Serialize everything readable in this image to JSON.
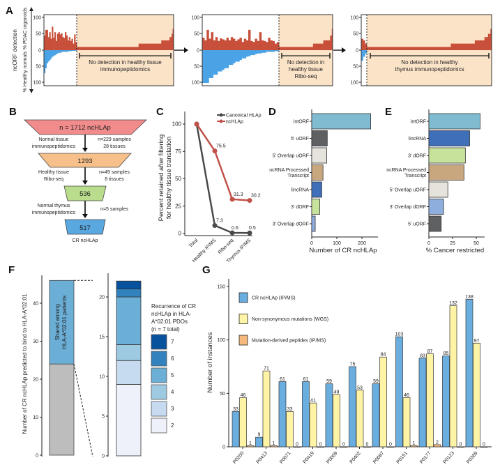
{
  "panel_labels": {
    "a": "A",
    "b": "B",
    "c": "C",
    "d": "D",
    "e": "E",
    "f": "F",
    "g": "G"
  },
  "panel_a": {
    "y_label_outer": "ncORF detection",
    "y_label_top": "% PDAC organoids",
    "y_label_bottom": "% Healthy normals",
    "ticks": [
      "100",
      "50",
      "0",
      "50",
      "100"
    ],
    "colors": {
      "pdac": "#c8503a",
      "healthy": "#4aa3e6",
      "undetected_bg": "#fbe3c8"
    },
    "plots": [
      {
        "annotation": [
          "No detection in healthy tissue",
          "immunopeptidomics"
        ],
        "red_detected": [
          45,
          62,
          62,
          40,
          55,
          35,
          72,
          38,
          55,
          28,
          50,
          55,
          48,
          52,
          40,
          38,
          55,
          45,
          30,
          40,
          28,
          35,
          20,
          48,
          25
        ],
        "blue_detected": [
          70,
          55,
          40,
          35,
          30,
          25,
          20,
          18,
          15,
          12,
          10,
          8,
          8,
          6,
          5,
          5,
          5,
          5,
          4,
          3,
          3,
          2,
          2,
          2,
          2
        ],
        "red_undetected_runs": [
          [
            60,
            10
          ],
          [
            22,
            20
          ],
          [
            8,
            30
          ],
          [
            2,
            40
          ],
          [
            1,
            50
          ],
          [
            1,
            65
          ]
        ]
      },
      {
        "annotation": [
          "No detection in",
          "healthy tissue",
          "Ribo-seq"
        ],
        "red_detected": [
          38,
          30,
          62,
          35,
          55,
          30,
          40,
          28,
          36,
          33,
          30,
          38,
          30,
          40,
          35,
          28,
          33,
          38,
          25,
          35,
          30,
          62,
          28,
          25,
          35,
          28,
          55,
          30,
          28,
          25,
          38,
          30,
          28,
          20,
          25
        ],
        "blue_detected": [
          100,
          100,
          100,
          85,
          85,
          75,
          75,
          65,
          65,
          60,
          55,
          55,
          45,
          45,
          40,
          35,
          35,
          30,
          25,
          25,
          20,
          18,
          15,
          15,
          12,
          10,
          10,
          8,
          8,
          5,
          5,
          5,
          5,
          3,
          3
        ],
        "red_undetected_runs": [
          [
            40,
            10
          ],
          [
            12,
            20
          ],
          [
            8,
            30
          ],
          [
            2,
            45
          ],
          [
            1,
            65
          ]
        ]
      },
      {
        "annotation": [
          "No detection in healthy",
          "thymus immunopeptidomics"
        ],
        "red_detected": [
          35,
          30,
          20
        ],
        "blue_detected": [
          32,
          20,
          10
        ],
        "red_undetected_runs": [
          [
            70,
            10
          ],
          [
            20,
            20
          ],
          [
            8,
            30
          ],
          [
            3,
            40
          ],
          [
            2,
            50
          ],
          [
            1,
            65
          ]
        ]
      }
    ]
  },
  "panel_b": {
    "top": "n = 1712 ncHLAp",
    "steps": [
      {
        "left": [
          "Normal tissue",
          "immunopeptidomics"
        ],
        "right": [
          "n=229 samples",
          "28 tissues"
        ],
        "value": "1293"
      },
      {
        "left": [
          "Healthy tissue",
          "Ribo-seq"
        ],
        "right": [
          "n=49 samples",
          "8 tissues"
        ],
        "value": "536"
      },
      {
        "left": [
          "Normal thymus",
          "immunopeptidomics"
        ],
        "right": [
          "n=5 samples"
        ],
        "value": "517"
      }
    ],
    "final_label": "CR ncHLAp",
    "colors": [
      "#f28c8c",
      "#f7c08a",
      "#b9dd8c",
      "#5aa8e0"
    ]
  },
  "chart_data": [
    {
      "panel": "C",
      "type": "line",
      "categories": [
        "Total",
        "Healthy IP/MS",
        "Ribo-seq",
        "Thymus IP/MS"
      ],
      "series": [
        {
          "name": "Canonical HLAp",
          "values": [
            100,
            7.3,
            0.6,
            0.5
          ],
          "labels": [
            "",
            "7.3",
            "0.6",
            "0.5"
          ],
          "color": "#4a4a4a"
        },
        {
          "name": "ncHLAp",
          "values": [
            100,
            75.5,
            31.3,
            30.2
          ],
          "labels": [
            "",
            "75.5",
            "31.3",
            "30.2"
          ],
          "color": "#c0524a"
        }
      ],
      "ylabel": [
        "Percent retained after filtering",
        "for healthy tissue translation"
      ],
      "yticks": [
        0,
        25,
        50,
        75,
        100
      ],
      "ylim": [
        0,
        100
      ]
    },
    {
      "panel": "D",
      "type": "bar",
      "orientation": "horizontal",
      "categories": [
        [
          "intORF"
        ],
        [
          "5' uORF"
        ],
        [
          "5' Overlap uORF"
        ],
        [
          "ncRNA Processed",
          "Transcript"
        ],
        [
          "lincRNA"
        ],
        [
          "3' dORF"
        ],
        [
          "3' Overlap dORF"
        ]
      ],
      "values": [
        235,
        62,
        60,
        45,
        40,
        32,
        14
      ],
      "colors": [
        "#7fbcd2",
        "#5f6062",
        "#e5e3dc",
        "#c8a77f",
        "#3e6fb8",
        "#c7e29a",
        "#8eaede"
      ],
      "xlabel": "Number of CR ncHLAp",
      "xticks": [
        0,
        100,
        200
      ],
      "xlim": [
        0,
        250
      ]
    },
    {
      "panel": "E",
      "type": "bar",
      "orientation": "horizontal",
      "categories": [
        [
          "intORF"
        ],
        [
          "lincRNA"
        ],
        [
          "3' dORF"
        ],
        [
          "ncRNA Processed",
          "Transcript"
        ],
        [
          "5' Overlap uORF"
        ],
        [
          "3' Overlap dORF"
        ],
        [
          "5' uORF"
        ]
      ],
      "values": [
        54,
        43,
        38.5,
        37,
        20,
        15.5,
        13
      ],
      "colors": [
        "#7fbcd2",
        "#3e6fb8",
        "#c7e29a",
        "#c8a77f",
        "#e5e3dc",
        "#8eaede",
        "#5f6062"
      ],
      "xlabel": "% Cancer restricted",
      "xticks": [
        0,
        25,
        50
      ],
      "xlim": [
        0,
        55
      ]
    },
    {
      "panel": "F",
      "type": "bar",
      "stacked": true,
      "ylabel": "Number of CR ncHLAp predicted to bind to HLA-A*02:01",
      "main_bar": {
        "total": 46,
        "shared": 22,
        "not_shared": 24,
        "shared_label": [
          "Shared among",
          "HLA-A*02:01 patients"
        ],
        "yticks": [
          0,
          10,
          20,
          30,
          40
        ]
      },
      "recurrence_bar": {
        "segments": [
          {
            "recurrence": "2",
            "count": 9
          },
          {
            "recurrence": "3",
            "count": 3
          },
          {
            "recurrence": "4",
            "count": 2
          },
          {
            "recurrence": "5",
            "count": 6
          },
          {
            "recurrence": "6",
            "count": 1
          },
          {
            "recurrence": "7",
            "count": 1
          }
        ],
        "yticks": [
          0,
          5,
          10,
          15,
          20
        ]
      },
      "legend_title": [
        "Recurrence of CR",
        "ncHLAp in HLA-",
        "A*02:01 PDOs",
        "(n = 7 total)"
      ],
      "legend_items": [
        "7",
        "6",
        "5",
        "4",
        "3",
        "2"
      ],
      "colors": {
        "2": "#eef1fa",
        "3": "#c6dbef",
        "4": "#9ecae1",
        "5": "#6baed6",
        "6": "#3182bd",
        "7": "#08519c",
        "not_shared": "#bdbdbd"
      }
    },
    {
      "panel": "G",
      "type": "bar",
      "categories": [
        "P0200",
        "P0413",
        "P0071",
        "P0419",
        "P0069",
        "P0402",
        "P0087",
        "P0151",
        "P0177",
        "P0123",
        "P0369"
      ],
      "series": [
        {
          "name": "CR ncHLAp (IP/MS)",
          "values": [
            33,
            9,
            61,
            61,
            59,
            75,
            59,
            103,
            83,
            85,
            138
          ],
          "color": "#6aaee0"
        },
        {
          "name": "Non-synonymous mutations (WGS)",
          "values": [
            46,
            71,
            33,
            41,
            49,
            53,
            84,
            46,
            87,
            132,
            97
          ],
          "color": "#fff3a6"
        },
        {
          "name": "Mutation-derived peptides (IP/MS)",
          "values": [
            1,
            1,
            0,
            0,
            0,
            0,
            0,
            1,
            2,
            0,
            0
          ],
          "color": "#f5b97c"
        }
      ],
      "ylabel": "Number of instances",
      "yticks": [
        0,
        50,
        100,
        150
      ],
      "ylim": [
        0,
        150
      ],
      "legend": "top-left"
    }
  ]
}
